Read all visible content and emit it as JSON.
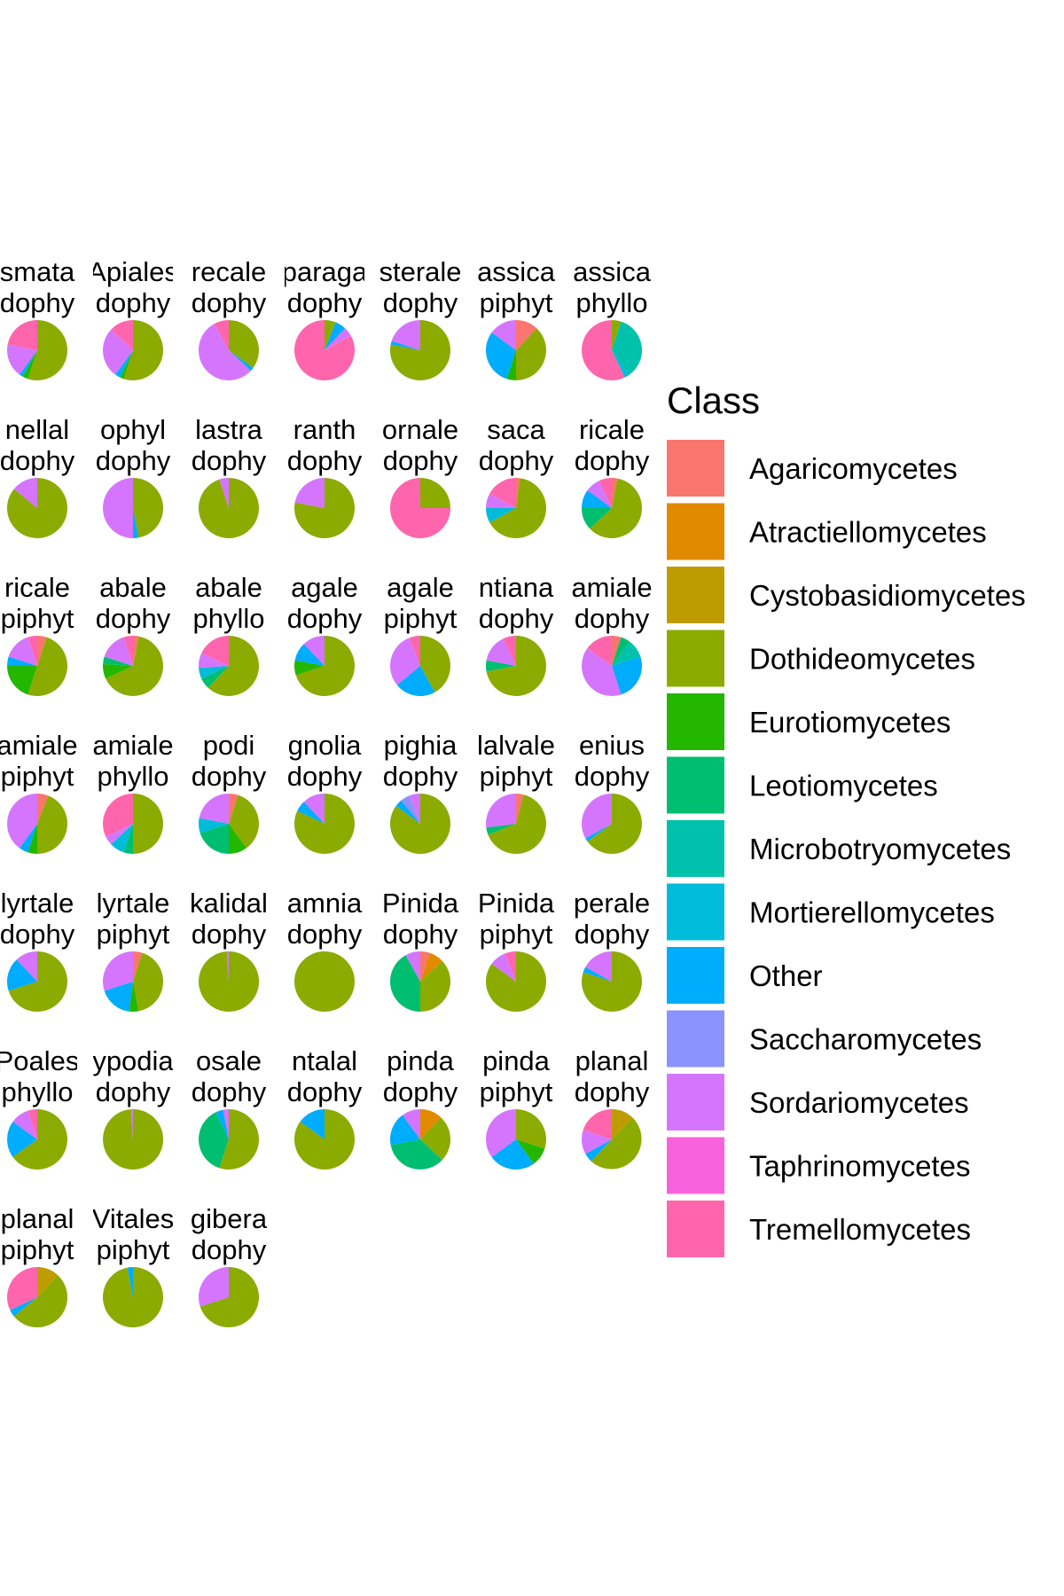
{
  "chart_data": {
    "type": "pie",
    "title": "",
    "legend": {
      "title": "Class",
      "position": "right",
      "entries": [
        {
          "label": "Agaricomycetes",
          "color": "#F8766D"
        },
        {
          "label": "Atractiellomycetes",
          "color": "#E18A00"
        },
        {
          "label": "Cystobasidiomycetes",
          "color": "#BE9C00"
        },
        {
          "label": "Dothideomycetes",
          "color": "#8CAB00"
        },
        {
          "label": "Eurotiomycetes",
          "color": "#24B700"
        },
        {
          "label": "Leotiomycetes",
          "color": "#00BE70"
        },
        {
          "label": "Microbotryomycetes",
          "color": "#00C1AB"
        },
        {
          "label": "Mortierellomycetes",
          "color": "#00BBDA"
        },
        {
          "label": "Other",
          "color": "#00ACFC"
        },
        {
          "label": "Saccharomycetes",
          "color": "#8B93FF"
        },
        {
          "label": "Sordariomycetes",
          "color": "#D575FE"
        },
        {
          "label": "Taphrinomycetes",
          "color": "#F962DD"
        },
        {
          "label": "Tremellomycetes",
          "color": "#FF65AC"
        }
      ]
    },
    "panels": [
      {
        "label1": "smata",
        "label2": "dophy",
        "slices": [
          [
            "Dothideomycetes",
            0.55
          ],
          [
            "Eurotiomycetes",
            0.03
          ],
          [
            "Other",
            0.02
          ],
          [
            "Sordariomycetes",
            0.18
          ],
          [
            "Tremellomycetes",
            0.22
          ]
        ]
      },
      {
        "label1": "Apiales",
        "label2": "dophy",
        "slices": [
          [
            "Dothideomycetes",
            0.55
          ],
          [
            "Eurotiomycetes",
            0.02
          ],
          [
            "Other",
            0.03
          ],
          [
            "Sordariomycetes",
            0.27
          ],
          [
            "Tremellomycetes",
            0.13
          ]
        ]
      },
      {
        "label1": "recale",
        "label2": "dophy",
        "slices": [
          [
            "Dothideomycetes",
            0.35
          ],
          [
            "Other",
            0.02
          ],
          [
            "Sordariomycetes",
            0.55
          ],
          [
            "Tremellomycetes",
            0.08
          ]
        ]
      },
      {
        "label1": "paraga",
        "label2": "dophy",
        "slices": [
          [
            "Dothideomycetes",
            0.06
          ],
          [
            "Other",
            0.06
          ],
          [
            "Sordariomycetes",
            0.05
          ],
          [
            "Tremellomycetes",
            0.83
          ]
        ]
      },
      {
        "label1": "sterale",
        "label2": "dophy",
        "slices": [
          [
            "Dothideomycetes",
            0.78
          ],
          [
            "Other",
            0.02
          ],
          [
            "Sordariomycetes",
            0.2
          ]
        ]
      },
      {
        "label1": "assica",
        "label2": "piphyt",
        "slices": [
          [
            "Agaricomycetes",
            0.12
          ],
          [
            "Dothideomycetes",
            0.38
          ],
          [
            "Eurotiomycetes",
            0.05
          ],
          [
            "Other",
            0.3
          ],
          [
            "Sordariomycetes",
            0.15
          ]
        ]
      },
      {
        "label1": "assica",
        "label2": "phyllo",
        "slices": [
          [
            "Dothideomycetes",
            0.05
          ],
          [
            "Microbotryomycetes",
            0.35
          ],
          [
            "Mortierellomycetes",
            0.03
          ],
          [
            "Tremellomycetes",
            0.57
          ]
        ]
      },
      {
        "label1": "nellal",
        "label2": "dophy",
        "slices": [
          [
            "Dothideomycetes",
            0.86
          ],
          [
            "Sordariomycetes",
            0.14
          ]
        ]
      },
      {
        "label1": "ophyl",
        "label2": "dophy",
        "slices": [
          [
            "Dothideomycetes",
            0.47
          ],
          [
            "Other",
            0.03
          ],
          [
            "Sordariomycetes",
            0.5
          ]
        ]
      },
      {
        "label1": "lastra",
        "label2": "dophy",
        "slices": [
          [
            "Dothideomycetes",
            0.95
          ],
          [
            "Sordariomycetes",
            0.05
          ]
        ]
      },
      {
        "label1": "ranth",
        "label2": "dophy",
        "slices": [
          [
            "Dothideomycetes",
            0.78
          ],
          [
            "Sordariomycetes",
            0.22
          ]
        ]
      },
      {
        "label1": "ornale",
        "label2": "dophy",
        "slices": [
          [
            "Dothideomycetes",
            0.25
          ],
          [
            "Tremellomycetes",
            0.75
          ]
        ]
      },
      {
        "label1": "saca",
        "label2": "dophy",
        "slices": [
          [
            "Agaricomycetes",
            0.02
          ],
          [
            "Dothideomycetes",
            0.65
          ],
          [
            "Mortierellomycetes",
            0.08
          ],
          [
            "Sordariomycetes",
            0.08
          ],
          [
            "Tremellomycetes",
            0.17
          ]
        ]
      },
      {
        "label1": "ricale",
        "label2": "dophy",
        "slices": [
          [
            "Agaricomycetes",
            0.03
          ],
          [
            "Dothideomycetes",
            0.6
          ],
          [
            "Leotiomycetes",
            0.12
          ],
          [
            "Other",
            0.1
          ],
          [
            "Sordariomycetes",
            0.08
          ],
          [
            "Tremellomycetes",
            0.07
          ]
        ]
      },
      {
        "label1": "ricale",
        "label2": "piphyt",
        "slices": [
          [
            "Agaricomycetes",
            0.05
          ],
          [
            "Dothideomycetes",
            0.5
          ],
          [
            "Eurotiomycetes",
            0.2
          ],
          [
            "Other",
            0.05
          ],
          [
            "Sordariomycetes",
            0.15
          ],
          [
            "Tremellomycetes",
            0.05
          ]
        ]
      },
      {
        "label1": "abale",
        "label2": "dophy",
        "slices": [
          [
            "Agaricomycetes",
            0.03
          ],
          [
            "Dothideomycetes",
            0.65
          ],
          [
            "Eurotiomycetes",
            0.08
          ],
          [
            "Leotiomycetes",
            0.04
          ],
          [
            "Sordariomycetes",
            0.15
          ],
          [
            "Tremellomycetes",
            0.05
          ]
        ]
      },
      {
        "label1": "abale",
        "label2": "phyllo",
        "slices": [
          [
            "Dothideomycetes",
            0.62
          ],
          [
            "Leotiomycetes",
            0.06
          ],
          [
            "Mortierellomycetes",
            0.06
          ],
          [
            "Sordariomycetes",
            0.08
          ],
          [
            "Tremellomycetes",
            0.18
          ]
        ]
      },
      {
        "label1": "agale",
        "label2": "dophy",
        "slices": [
          [
            "Dothideomycetes",
            0.7
          ],
          [
            "Eurotiomycetes",
            0.08
          ],
          [
            "Other",
            0.1
          ],
          [
            "Sordariomycetes",
            0.12
          ]
        ]
      },
      {
        "label1": "agale",
        "label2": "piphyt",
        "slices": [
          [
            "Dothideomycetes",
            0.42
          ],
          [
            "Other",
            0.22
          ],
          [
            "Sordariomycetes",
            0.3
          ],
          [
            "Tremellomycetes",
            0.06
          ]
        ]
      },
      {
        "label1": "ntiana",
        "label2": "dophy",
        "slices": [
          [
            "Dothideomycetes",
            0.72
          ],
          [
            "Leotiomycetes",
            0.06
          ],
          [
            "Sordariomycetes",
            0.15
          ],
          [
            "Tremellomycetes",
            0.07
          ]
        ]
      },
      {
        "label1": "amiale",
        "label2": "dophy",
        "slices": [
          [
            "Agaricomycetes",
            0.05
          ],
          [
            "Leotiomycetes",
            0.05
          ],
          [
            "Microbotryomycetes",
            0.1
          ],
          [
            "Other",
            0.25
          ],
          [
            "Sordariomycetes",
            0.4
          ],
          [
            "Tremellomycetes",
            0.15
          ]
        ]
      },
      {
        "label1": "amiale",
        "label2": "piphyt",
        "slices": [
          [
            "Agaricomycetes",
            0.06
          ],
          [
            "Dothideomycetes",
            0.44
          ],
          [
            "Eurotiomycetes",
            0.05
          ],
          [
            "Other",
            0.05
          ],
          [
            "Sordariomycetes",
            0.4
          ]
        ]
      },
      {
        "label1": "amiale",
        "label2": "phyllo",
        "slices": [
          [
            "Dothideomycetes",
            0.5
          ],
          [
            "Leotiomycetes",
            0.05
          ],
          [
            "Mortierellomycetes",
            0.08
          ],
          [
            "Sordariomycetes",
            0.05
          ],
          [
            "Tremellomycetes",
            0.32
          ]
        ]
      },
      {
        "label1": "podi",
        "label2": "dophy",
        "slices": [
          [
            "Agaricomycetes",
            0.05
          ],
          [
            "Dothideomycetes",
            0.35
          ],
          [
            "Eurotiomycetes",
            0.1
          ],
          [
            "Leotiomycetes",
            0.2
          ],
          [
            "Mortierellomycetes",
            0.08
          ],
          [
            "Sordariomycetes",
            0.22
          ]
        ]
      },
      {
        "label1": "gnolia",
        "label2": "dophy",
        "slices": [
          [
            "Dothideomycetes",
            0.82
          ],
          [
            "Other",
            0.06
          ],
          [
            "Sordariomycetes",
            0.12
          ]
        ]
      },
      {
        "label1": "pighia",
        "label2": "dophy",
        "slices": [
          [
            "Dothideomycetes",
            0.85
          ],
          [
            "Other",
            0.04
          ],
          [
            "Saccharomycetes",
            0.05
          ],
          [
            "Sordariomycetes",
            0.06
          ]
        ]
      },
      {
        "label1": "lalvale",
        "label2": "piphyt",
        "slices": [
          [
            "Agaricomycetes",
            0.04
          ],
          [
            "Dothideomycetes",
            0.65
          ],
          [
            "Leotiomycetes",
            0.04
          ],
          [
            "Sordariomycetes",
            0.27
          ]
        ]
      },
      {
        "label1": "enius",
        "label2": "dophy",
        "slices": [
          [
            "Dothideomycetes",
            0.65
          ],
          [
            "Other",
            0.02
          ],
          [
            "Sordariomycetes",
            0.33
          ]
        ]
      },
      {
        "label1": "lyrtale",
        "label2": "dophy",
        "slices": [
          [
            "Dothideomycetes",
            0.7
          ],
          [
            "Other",
            0.18
          ],
          [
            "Sordariomycetes",
            0.12
          ]
        ]
      },
      {
        "label1": "lyrtale",
        "label2": "piphyt",
        "slices": [
          [
            "Agaricomycetes",
            0.05
          ],
          [
            "Dothideomycetes",
            0.42
          ],
          [
            "Eurotiomycetes",
            0.05
          ],
          [
            "Other",
            0.18
          ],
          [
            "Sordariomycetes",
            0.3
          ]
        ]
      },
      {
        "label1": "kalidal",
        "label2": "dophy",
        "slices": [
          [
            "Dothideomycetes",
            0.99
          ],
          [
            "Sordariomycetes",
            0.01
          ]
        ]
      },
      {
        "label1": "amnia",
        "label2": "dophy",
        "slices": [
          [
            "Dothideomycetes",
            1.0
          ]
        ]
      },
      {
        "label1": "Pinida",
        "label2": "dophy",
        "slices": [
          [
            "Agaricomycetes",
            0.05
          ],
          [
            "Atractiellomycetes",
            0.08
          ],
          [
            "Dothideomycetes",
            0.37
          ],
          [
            "Leotiomycetes",
            0.42
          ],
          [
            "Sordariomycetes",
            0.08
          ]
        ]
      },
      {
        "label1": "Pinida",
        "label2": "piphyt",
        "slices": [
          [
            "Dothideomycetes",
            0.85
          ],
          [
            "Sordariomycetes",
            0.09
          ],
          [
            "Tremellomycetes",
            0.06
          ]
        ]
      },
      {
        "label1": "perale",
        "label2": "dophy",
        "slices": [
          [
            "Dothideomycetes",
            0.8
          ],
          [
            "Other",
            0.03
          ],
          [
            "Sordariomycetes",
            0.17
          ]
        ]
      },
      {
        "label1": "Poales",
        "label2": "phyllo",
        "slices": [
          [
            "Dothideomycetes",
            0.65
          ],
          [
            "Other",
            0.2
          ],
          [
            "Sordariomycetes",
            0.1
          ],
          [
            "Tremellomycetes",
            0.05
          ]
        ]
      },
      {
        "label1": "ypodia",
        "label2": "dophy",
        "slices": [
          [
            "Dothideomycetes",
            0.99
          ],
          [
            "Sordariomycetes",
            0.01
          ]
        ]
      },
      {
        "label1": "osale",
        "label2": "dophy",
        "slices": [
          [
            "Dothideomycetes",
            0.55
          ],
          [
            "Leotiomycetes",
            0.38
          ],
          [
            "Other",
            0.04
          ],
          [
            "Sordariomycetes",
            0.03
          ]
        ]
      },
      {
        "label1": "ntalal",
        "label2": "dophy",
        "slices": [
          [
            "Dothideomycetes",
            0.85
          ],
          [
            "Other",
            0.15
          ]
        ]
      },
      {
        "label1": "pinda",
        "label2": "dophy",
        "slices": [
          [
            "Atractiellomycetes",
            0.12
          ],
          [
            "Dothideomycetes",
            0.25
          ],
          [
            "Leotiomycetes",
            0.35
          ],
          [
            "Other",
            0.18
          ],
          [
            "Sordariomycetes",
            0.1
          ]
        ]
      },
      {
        "label1": "pinda",
        "label2": "piphyt",
        "slices": [
          [
            "Dothideomycetes",
            0.3
          ],
          [
            "Eurotiomycetes",
            0.1
          ],
          [
            "Other",
            0.25
          ],
          [
            "Sordariomycetes",
            0.35
          ]
        ]
      },
      {
        "label1": "planal",
        "label2": "dophy",
        "slices": [
          [
            "Cystobasidiomycetes",
            0.12
          ],
          [
            "Dothideomycetes",
            0.5
          ],
          [
            "Other",
            0.05
          ],
          [
            "Sordariomycetes",
            0.13
          ],
          [
            "Tremellomycetes",
            0.2
          ]
        ]
      },
      {
        "label1": "planal",
        "label2": "piphyt",
        "slices": [
          [
            "Cystobasidiomycetes",
            0.12
          ],
          [
            "Dothideomycetes",
            0.52
          ],
          [
            "Other",
            0.04
          ],
          [
            "Tremellomycetes",
            0.32
          ]
        ]
      },
      {
        "label1": "Vitales",
        "label2": "piphyt",
        "slices": [
          [
            "Dothideomycetes",
            0.97
          ],
          [
            "Other",
            0.03
          ]
        ]
      },
      {
        "label1": "gibera",
        "label2": "dophy",
        "slices": [
          [
            "Dothideomycetes",
            0.7
          ],
          [
            "Sordariomycetes",
            0.3
          ]
        ]
      }
    ]
  }
}
